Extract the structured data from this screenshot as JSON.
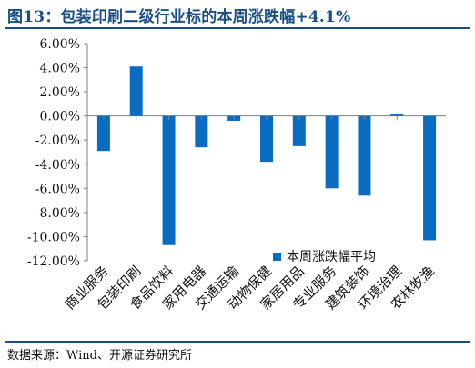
{
  "title": "图13：包装印刷二级行业标的本周涨跌幅+4.1%",
  "source": "数据来源：Wind、开源证券研究所",
  "chart_data": {
    "type": "bar",
    "categories": [
      "商业服务",
      "包装印刷",
      "食品饮料",
      "家用电器",
      "交通运输",
      "动物保健",
      "家居用品",
      "专业服务",
      "建筑装饰",
      "环境治理",
      "农林牧渔"
    ],
    "series": [
      {
        "name": "本周涨跌幅平均",
        "values": [
          -2.9,
          4.1,
          -10.7,
          -2.6,
          -0.4,
          -3.8,
          -2.5,
          -6.0,
          -6.6,
          0.2,
          -10.3
        ]
      }
    ],
    "ylim": [
      -12,
      6
    ],
    "yticks": [
      6,
      4,
      2,
      0,
      -2,
      -4,
      -6,
      -8,
      -10,
      -12
    ],
    "ytick_labels": [
      "6.00%",
      "4.00%",
      "2.00%",
      "0.00%",
      "-2.00%",
      "-4.00%",
      "-6.00%",
      "-8.00%",
      "-10.00%",
      "-12.00%"
    ],
    "legend_position": "lower-right",
    "grid": false,
    "colors": {
      "bar": "#0a6cc1",
      "axis": "#7f7f7f",
      "title": "#1a4f86"
    }
  }
}
